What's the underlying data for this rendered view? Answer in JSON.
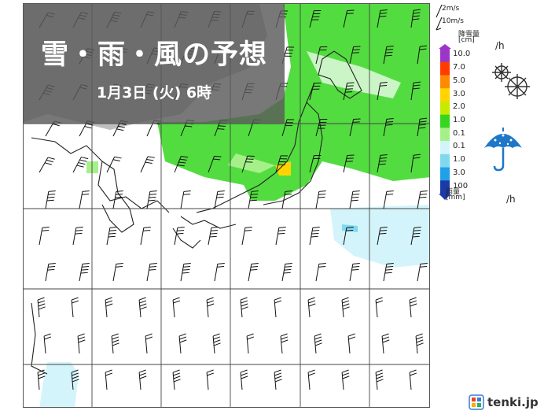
{
  "header": {
    "title": "雪・雨・風の予想",
    "subtitle": "1月3日 (火) 6時"
  },
  "legend": {
    "wind_short": "2m/s",
    "wind_long": "10m/s",
    "snow_title": "降雪量",
    "snow_unit": "[cm]",
    "rain_title": "雨量",
    "rain_unit": "[mm]",
    "per_hour_snow": "/h",
    "per_hour_rain": "/h",
    "scale_values": [
      "10.0",
      "7.0",
      "5.0",
      "3.0",
      "2.0",
      "1.0",
      "0.1",
      "0.1",
      "1.0",
      "3.0",
      "100"
    ],
    "scale_colors": [
      "#9b36c9",
      "#ff3b00",
      "#ff8a00",
      "#ffd400",
      "#c7ea00",
      "#35d61f",
      "#a6f08a",
      "#d4f4fb",
      "#7fd8f0",
      "#21a0e8",
      "#1b3aa8"
    ],
    "snow_icon": "snowflake-icon",
    "rain_icon": "umbrella-icon"
  },
  "brand": {
    "logo_text": "tenki.jp",
    "logo_icon": "tenki-logo-icon"
  }
}
